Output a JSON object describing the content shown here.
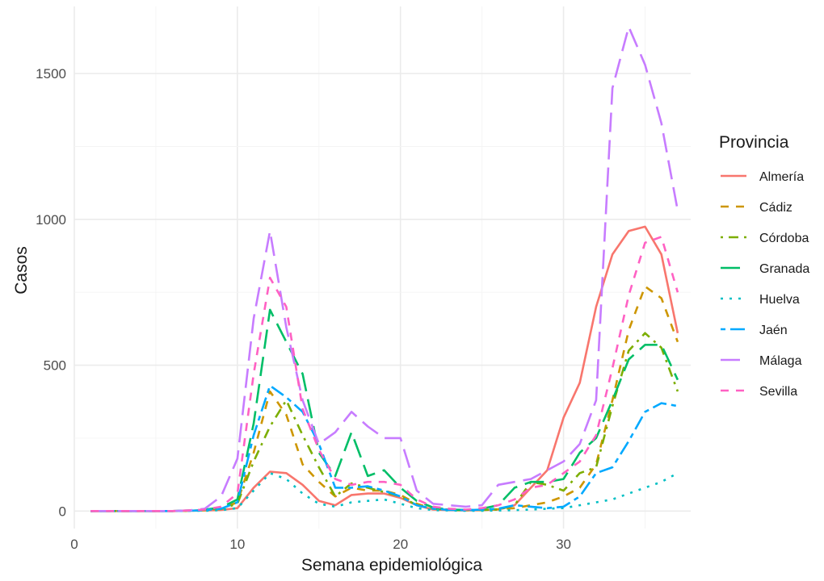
{
  "chart_data": {
    "type": "line",
    "title": "",
    "xlabel": "Semana epidemiológica",
    "ylabel": "Casos",
    "xlim": [
      0,
      37.8
    ],
    "ylim": [
      -60,
      1730
    ],
    "x_ticks": [
      0,
      10,
      20,
      30
    ],
    "y_ticks": [
      0,
      500,
      1000,
      1500
    ],
    "grid": true,
    "legend_title": "Provincia",
    "legend_position": "right",
    "x": [
      1,
      2,
      3,
      4,
      5,
      6,
      7,
      8,
      9,
      10,
      11,
      12,
      13,
      14,
      15,
      16,
      17,
      18,
      19,
      20,
      21,
      22,
      23,
      24,
      25,
      26,
      27,
      28,
      29,
      30,
      31,
      32,
      33,
      34,
      35,
      36,
      37
    ],
    "series": [
      {
        "name": "Almería",
        "color": "#F8766D",
        "dash": "solid",
        "values": [
          0,
          0,
          0,
          0,
          0,
          0,
          1,
          2,
          4,
          10,
          80,
          135,
          130,
          90,
          35,
          20,
          55,
          60,
          60,
          45,
          20,
          5,
          3,
          2,
          3,
          5,
          20,
          80,
          140,
          320,
          440,
          700,
          880,
          960,
          975,
          880,
          610
        ]
      },
      {
        "name": "Cádiz",
        "color": "#CD9600",
        "dash": "dashed",
        "values": [
          0,
          0,
          0,
          0,
          0,
          0,
          1,
          3,
          8,
          30,
          200,
          410,
          330,
          160,
          100,
          50,
          80,
          70,
          70,
          55,
          25,
          8,
          5,
          3,
          4,
          6,
          10,
          20,
          30,
          50,
          80,
          160,
          380,
          620,
          770,
          730,
          580
        ]
      },
      {
        "name": "Córdoba",
        "color": "#7CAE00",
        "dash": "dotdash",
        "values": [
          0,
          0,
          0,
          0,
          0,
          0,
          1,
          3,
          7,
          25,
          170,
          290,
          380,
          260,
          150,
          50,
          95,
          80,
          65,
          50,
          20,
          8,
          4,
          3,
          4,
          5,
          20,
          100,
          90,
          70,
          130,
          150,
          360,
          550,
          610,
          560,
          410
        ]
      },
      {
        "name": "Granada",
        "color": "#00BE67",
        "dash": "longdash",
        "values": [
          0,
          0,
          0,
          0,
          0,
          0,
          2,
          5,
          12,
          40,
          300,
          690,
          580,
          470,
          200,
          120,
          270,
          120,
          140,
          80,
          35,
          12,
          5,
          4,
          8,
          20,
          80,
          100,
          100,
          110,
          200,
          250,
          380,
          520,
          570,
          570,
          450
        ]
      },
      {
        "name": "Huelva",
        "color": "#00BFC4",
        "dash": "dotted",
        "values": [
          0,
          0,
          0,
          0,
          0,
          0,
          1,
          1,
          3,
          10,
          70,
          130,
          110,
          60,
          25,
          15,
          30,
          35,
          40,
          25,
          10,
          3,
          2,
          1,
          1,
          2,
          3,
          5,
          8,
          10,
          20,
          30,
          40,
          60,
          80,
          100,
          130
        ]
      },
      {
        "name": "Jaén",
        "color": "#00A9FF",
        "dash": "twodash",
        "values": [
          0,
          0,
          0,
          0,
          0,
          0,
          1,
          3,
          8,
          30,
          260,
          430,
          390,
          340,
          230,
          80,
          80,
          85,
          70,
          50,
          20,
          8,
          4,
          3,
          5,
          8,
          20,
          15,
          10,
          15,
          50,
          130,
          150,
          240,
          340,
          370,
          360
        ]
      },
      {
        "name": "Málaga",
        "color": "#C77CFF",
        "dash": "longdash",
        "values": [
          0,
          0,
          0,
          0,
          0,
          0,
          2,
          8,
          50,
          180,
          660,
          960,
          630,
          380,
          230,
          270,
          340,
          290,
          250,
          250,
          70,
          25,
          20,
          15,
          20,
          90,
          100,
          110,
          140,
          170,
          230,
          380,
          1450,
          1660,
          1530,
          1330,
          1030
        ]
      },
      {
        "name": "Sevilla",
        "color": "#FF61C3",
        "dash": "dashed",
        "values": [
          0,
          0,
          0,
          0,
          0,
          0,
          2,
          5,
          15,
          60,
          470,
          800,
          700,
          350,
          210,
          110,
          90,
          100,
          100,
          90,
          40,
          15,
          8,
          5,
          10,
          20,
          40,
          80,
          90,
          130,
          170,
          260,
          490,
          740,
          920,
          940,
          750
        ]
      }
    ]
  }
}
